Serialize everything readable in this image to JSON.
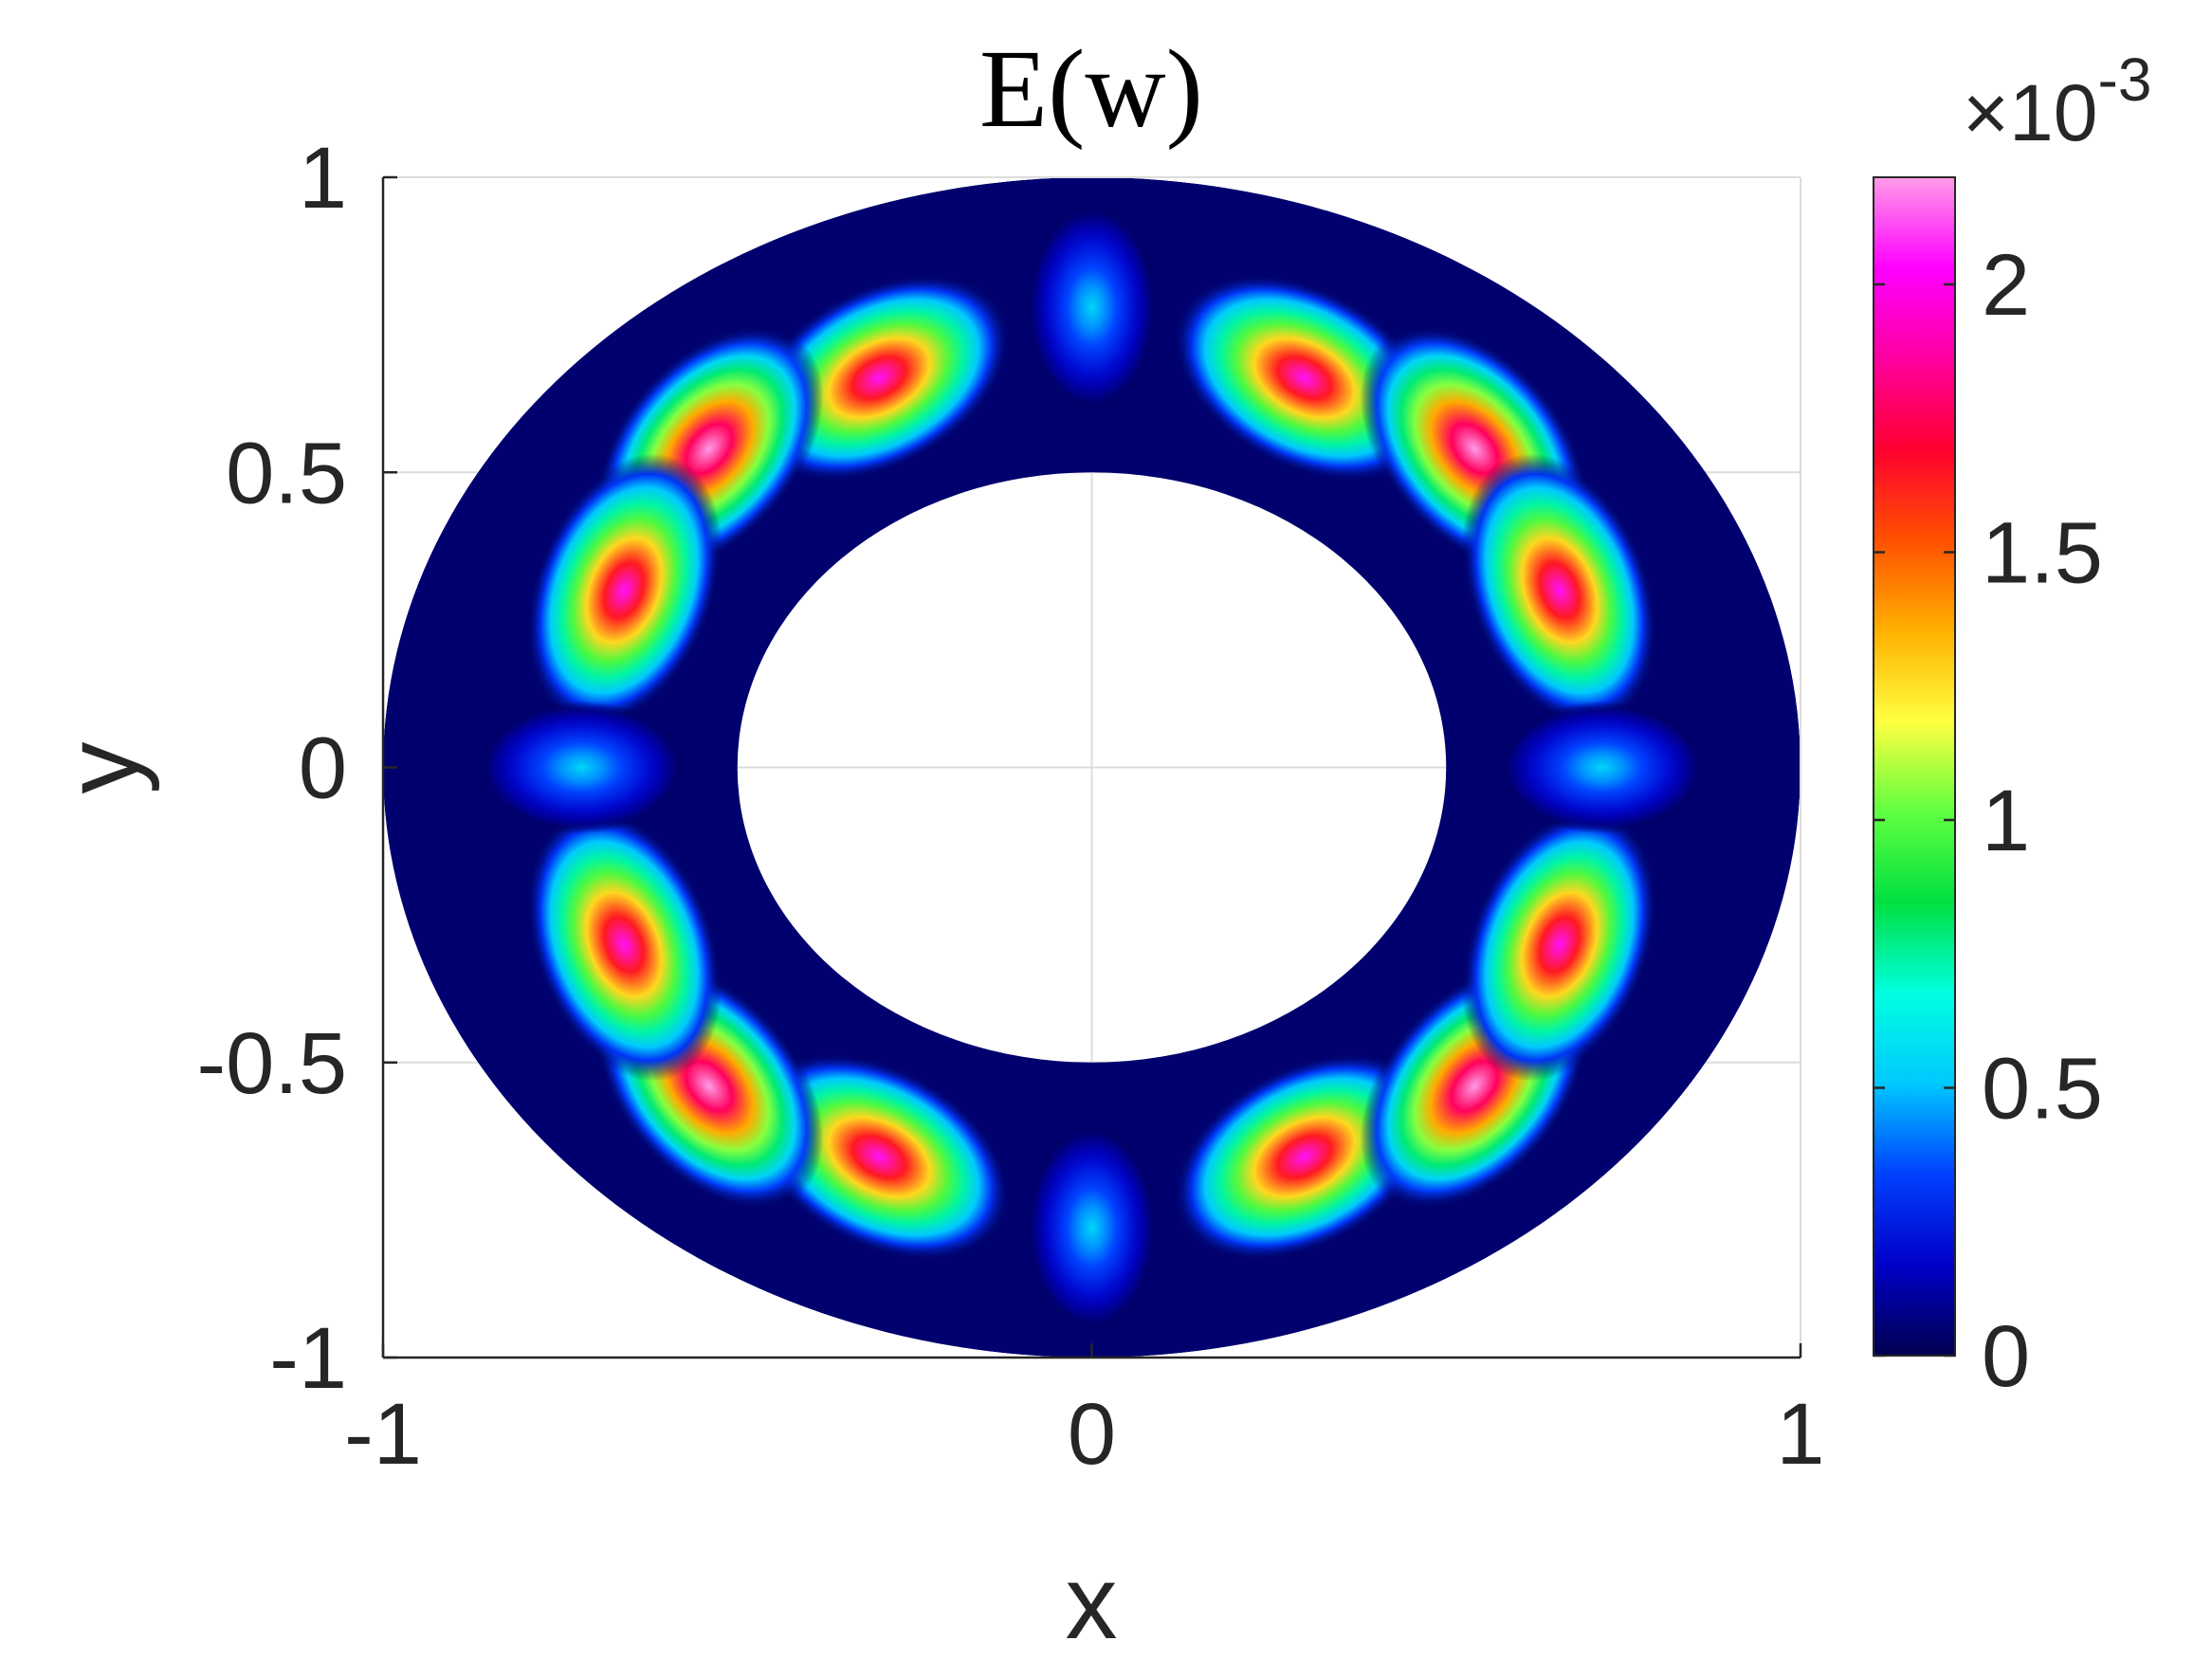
{
  "chart_data": {
    "type": "heatmap",
    "title": "E(w)",
    "xlabel": "x",
    "ylabel": "y",
    "xlim": [
      -1,
      1
    ],
    "ylim": [
      -1,
      1
    ],
    "x_ticks": [
      "-1",
      "0",
      "1"
    ],
    "y_ticks": [
      "-1",
      "-0.5",
      "0",
      "0.5",
      "1"
    ],
    "x_tick_values": [
      -1,
      0,
      1
    ],
    "y_tick_values": [
      -1,
      -0.5,
      0,
      0.5,
      1
    ],
    "grid": true,
    "domain": {
      "shape": "annulus",
      "inner_radius": 0.5,
      "outer_radius": 1
    },
    "colorbar": {
      "range": [
        0,
        0.0022
      ],
      "exponent_label": "×10",
      "exponent_power": "-3",
      "ticks": [
        "0",
        "0.5",
        "1",
        "1.5",
        "2"
      ],
      "tick_values": [
        0,
        0.5,
        1,
        1.5,
        2
      ],
      "colors": [
        "#000050",
        "#0000c8",
        "#0040ff",
        "#00c8ff",
        "#00ffe0",
        "#00e040",
        "#60ff40",
        "#ffff40",
        "#ffb000",
        "#ff5000",
        "#ff0030",
        "#ff00a0",
        "#ff00ff",
        "#ff9ce8"
      ]
    },
    "peaks": [
      {
        "x": -0.3,
        "y": 0.66,
        "value": 2.05
      },
      {
        "x": -0.54,
        "y": 0.54,
        "value": 2.2
      },
      {
        "x": -0.66,
        "y": 0.3,
        "value": 2.05
      },
      {
        "x": 0.3,
        "y": 0.66,
        "value": 2.05
      },
      {
        "x": 0.54,
        "y": 0.54,
        "value": 2.2
      },
      {
        "x": 0.66,
        "y": 0.3,
        "value": 2.05
      },
      {
        "x": -0.3,
        "y": -0.66,
        "value": 2.05
      },
      {
        "x": -0.54,
        "y": -0.54,
        "value": 2.2
      },
      {
        "x": -0.66,
        "y": -0.3,
        "value": 2.05
      },
      {
        "x": 0.3,
        "y": -0.66,
        "value": 2.05
      },
      {
        "x": 0.54,
        "y": -0.54,
        "value": 2.2
      },
      {
        "x": 0.66,
        "y": -0.3,
        "value": 2.05
      },
      {
        "x": 0.0,
        "y": 0.78,
        "value": 0.55
      },
      {
        "x": 0.0,
        "y": -0.78,
        "value": 0.55
      },
      {
        "x": -0.72,
        "y": 0.0,
        "value": 0.55
      },
      {
        "x": 0.72,
        "y": 0.0,
        "value": 0.55
      }
    ]
  }
}
